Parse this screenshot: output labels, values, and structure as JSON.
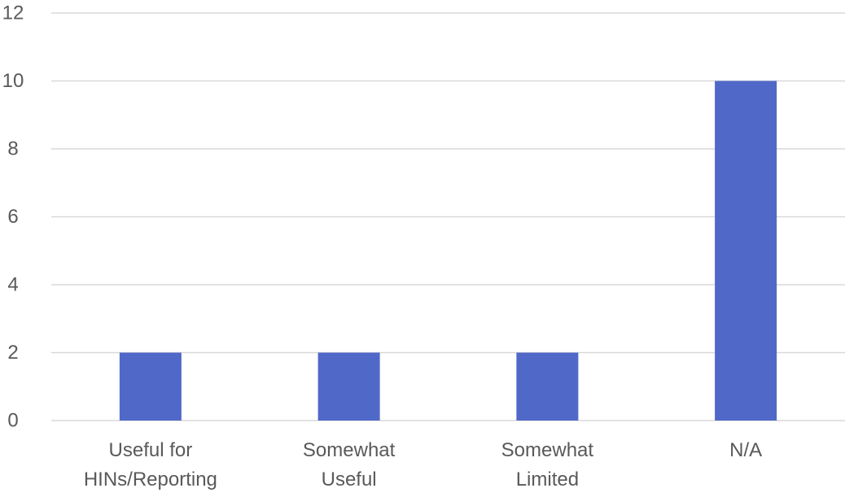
{
  "chart_data": {
    "type": "bar",
    "title": "",
    "xlabel": "",
    "ylabel": "",
    "categories": [
      [
        "Useful for",
        "HINs/Reporting"
      ],
      [
        "Somewhat",
        "Useful"
      ],
      [
        "Somewhat",
        "Limited"
      ],
      [
        "N/A"
      ]
    ],
    "values": [
      2,
      2,
      2,
      10
    ],
    "ylim": [
      0,
      12
    ],
    "yticks": [
      "0",
      "2",
      "4",
      "6",
      "8",
      "10",
      "12"
    ],
    "grid": true,
    "legend": "none",
    "colors": {
      "bar": "#5068C8",
      "gridline": "#D9D9D9",
      "text": "#595959"
    }
  }
}
